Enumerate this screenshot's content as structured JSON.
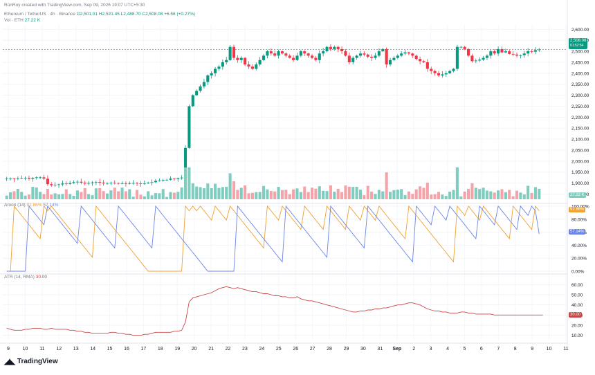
{
  "header": {
    "credit": "RonRoy created with TradingView.com, Sep 09, 2026 19:07 UTC+5:30",
    "symbol": "Ethereum / TetherUS · 4h · Binance",
    "ohlc": {
      "o": "O2,501.01",
      "h": "H2,521.45",
      "l": "L2,488.70",
      "c": "C2,508.08",
      "chg": "+6.56 (+0.27%)"
    },
    "volume_label": "Vol · ETH",
    "volume_value": "27.22 K"
  },
  "panes": {
    "aroon_label": "Aroon (14)",
    "aroon_up_value": "92.86%",
    "aroon_down_value": "57.14%",
    "atr_label": "ATR (14, RMA)",
    "atr_value": "30.00"
  },
  "badges": {
    "price": "2,508.08",
    "price_sub": "01:52:54",
    "volume": "27.22 K",
    "aroon_up": "92.86%",
    "aroon_down": "57.14%",
    "atr": "30.00"
  },
  "colors": {
    "up": "#089981",
    "down": "#f23645",
    "vol_up": "#7fcdbf",
    "vol_down": "#f5a3a8",
    "aroon_up": "#f0a02e",
    "aroon_down": "#6b83e8",
    "atr": "#c94545"
  },
  "branding": "TradingView",
  "chart_data": [
    {
      "type": "candlestick",
      "title": "Ethereum / TetherUS · 4h · Binance",
      "y_ticks": [
        "2,600.00",
        "2,550.00",
        "2,500.00",
        "2,450.00",
        "2,400.00",
        "2,350.00",
        "2,300.00",
        "2,250.00",
        "2,200.00",
        "2,150.00",
        "2,100.00",
        "2,050.00",
        "2,000.00",
        "1,950.00",
        "1,900.00",
        "1,850.00"
      ],
      "x_ticks": [
        "9",
        "10",
        "11",
        "12",
        "13",
        "14",
        "15",
        "16",
        "17",
        "18",
        "19",
        "20",
        "21",
        "22",
        "23",
        "24",
        "25",
        "26",
        "27",
        "28",
        "29",
        "30",
        "31",
        "Sep",
        "2",
        "3",
        "4",
        "5",
        "6",
        "7",
        "8",
        "9",
        "10",
        "11"
      ],
      "ylim": [
        1820,
        2620
      ],
      "last_price": 2508.08,
      "close_series": [
        1920,
        1920,
        1919,
        1922,
        1924,
        1924,
        1920,
        1924,
        1926,
        1926,
        1920,
        1895,
        1890,
        1892,
        1894,
        1898,
        1896,
        1900,
        1904,
        1906,
        1902,
        1898,
        1900,
        1903,
        1905,
        1902,
        1899,
        1900,
        1901,
        1900,
        1899,
        1899,
        1898,
        1899,
        1900,
        1898,
        1897,
        1899,
        1902,
        1904,
        1910,
        1912,
        1914,
        1915,
        1920,
        1918,
        1922,
        1925,
        2060,
        2250,
        2300,
        2320,
        2340,
        2360,
        2390,
        2400,
        2420,
        2430,
        2450,
        2460,
        2520,
        2470,
        2460,
        2470,
        2440,
        2430,
        2420,
        2440,
        2460,
        2480,
        2500,
        2490,
        2480,
        2500,
        2490,
        2480,
        2470,
        2460,
        2480,
        2500,
        2490,
        2480,
        2470,
        2460,
        2490,
        2500,
        2520,
        2510,
        2520,
        2510,
        2500,
        2480,
        2450,
        2470,
        2480,
        2490,
        2485,
        2475,
        2470,
        2480,
        2500,
        2510,
        2440,
        2460,
        2470,
        2480,
        2490,
        2495,
        2490,
        2480,
        2465,
        2455,
        2450,
        2420,
        2410,
        2400,
        2390,
        2395,
        2400,
        2410,
        2420,
        2520,
        2520,
        2510,
        2480,
        2455,
        2458,
        2462,
        2470,
        2480,
        2500,
        2490,
        2510,
        2495,
        2500,
        2488,
        2485,
        2480,
        2482,
        2490,
        2500,
        2498,
        2505,
        2508
      ]
    },
    {
      "type": "bar",
      "title": "Vol · ETH",
      "last_value": "27.22 K"
    },
    {
      "type": "line",
      "title": "Aroon (14)",
      "y_ticks": [
        "100.00%",
        "80.00%",
        "60.00%",
        "40.00%",
        "20.00%",
        "0.00%"
      ],
      "ylim": [
        0,
        100
      ],
      "series": [
        {
          "name": "Aroon Up",
          "last": 92.86
        },
        {
          "name": "Aroon Down",
          "last": 57.14
        }
      ]
    },
    {
      "type": "line",
      "title": "ATR (14, RMA)",
      "y_ticks": [
        "60.00",
        "50.00",
        "40.00",
        "30.00",
        "20.00",
        "10.00"
      ],
      "ylim": [
        5,
        65
      ],
      "series": [
        {
          "name": "ATR",
          "last": 30.0,
          "values": [
            17,
            16,
            15,
            15,
            15,
            16,
            16,
            17,
            17,
            17,
            16,
            16,
            17,
            16,
            16,
            16,
            16,
            15,
            15,
            14,
            14,
            13,
            13,
            12,
            12,
            12,
            12,
            12,
            13,
            13,
            12,
            12,
            11,
            11,
            10,
            10,
            10,
            11,
            11,
            12,
            13,
            13,
            13,
            13,
            13,
            14,
            14,
            15,
            23,
            43,
            47,
            48,
            49,
            50,
            51,
            52,
            54,
            56,
            57,
            58,
            57,
            56,
            57,
            56,
            55,
            54,
            53,
            53,
            52,
            51,
            51,
            50,
            49,
            49,
            48,
            48,
            47,
            47,
            48,
            46,
            45,
            44,
            44,
            43,
            42,
            41,
            40,
            39,
            38,
            37,
            36,
            35,
            34,
            33,
            33,
            34,
            34,
            35,
            35,
            36,
            36,
            37,
            37,
            38,
            39,
            40,
            40,
            41,
            42,
            42,
            41,
            40,
            38,
            36,
            35,
            34,
            34,
            33,
            33,
            32,
            32,
            32,
            33,
            33,
            32,
            32,
            31,
            31,
            31,
            31,
            31,
            30,
            30,
            30,
            30,
            30,
            30,
            30,
            30,
            30,
            30,
            30,
            30,
            30,
            30
          ]
        }
      ]
    }
  ]
}
